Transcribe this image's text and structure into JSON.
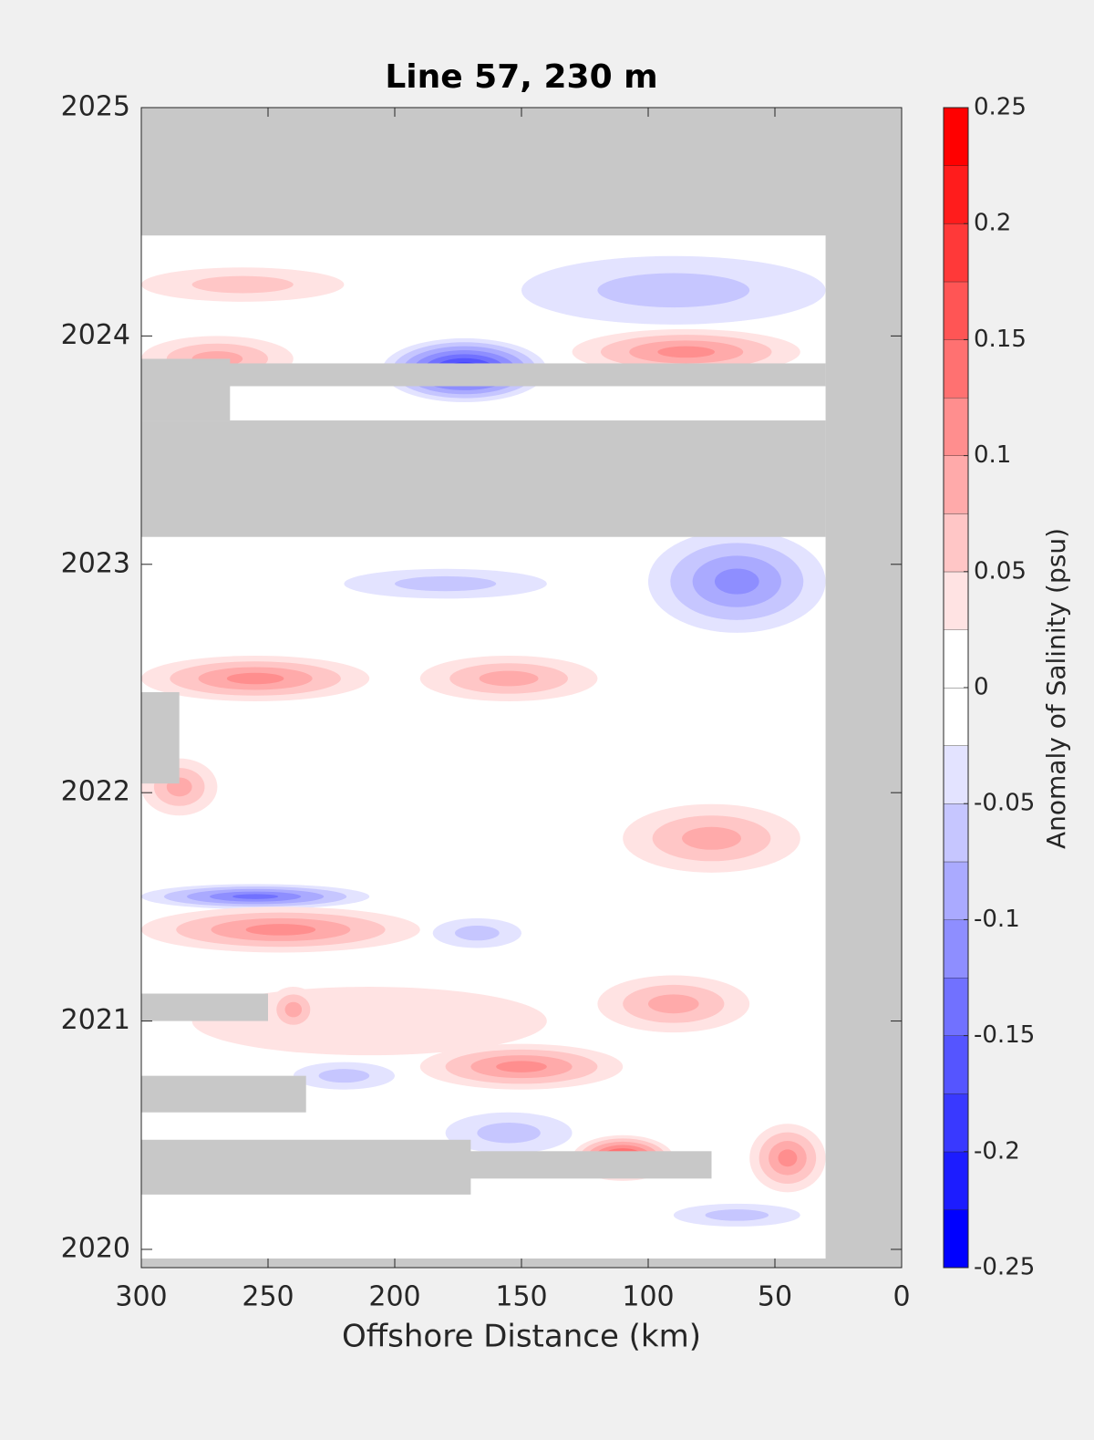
{
  "chart_data": {
    "type": "contour",
    "title": "Line 57, 230 m",
    "xlabel": "Offshore Distance (km)",
    "colorbar_label": "Anomaly of Salinity (psu)",
    "xlim": [
      300,
      0
    ],
    "xticks": [
      300,
      250,
      200,
      150,
      100,
      50,
      0
    ],
    "ylim": [
      2019.92,
      2025
    ],
    "yticks": [
      2020,
      2021,
      2022,
      2023,
      2024,
      2025
    ],
    "clim": [
      -0.25,
      0.25
    ],
    "cticks": [
      -0.25,
      -0.2,
      -0.15,
      -0.1,
      -0.05,
      0,
      0.05,
      0.1,
      0.15,
      0.2,
      0.25
    ],
    "level_step": 0.025,
    "colors": {
      "negative": "#0000ff",
      "zero": "#ffffff",
      "positive": "#ff0000",
      "missing": "#c8c8c8"
    },
    "anomalies": [
      {
        "x": [
          280,
          140
        ],
        "y": [
          2020.85,
          2021.15
        ],
        "value": 0.04
      },
      {
        "x": [
          300,
          220
        ],
        "y": [
          2024.15,
          2024.3
        ],
        "value": 0.06
      },
      {
        "x": [
          150,
          30
        ],
        "y": [
          2024.05,
          2024.35
        ],
        "value": -0.07
      },
      {
        "x": [
          300,
          240
        ],
        "y": [
          2023.8,
          2024.0
        ],
        "value": 0.08
      },
      {
        "x": [
          130,
          40
        ],
        "y": [
          2023.83,
          2024.03
        ],
        "value": 0.1
      },
      {
        "x": [
          205,
          140
        ],
        "y": [
          2023.71,
          2023.99
        ],
        "value": -0.2
      },
      {
        "x": [
          100,
          30
        ],
        "y": [
          2022.7,
          2023.15
        ],
        "value": -0.1
      },
      {
        "x": [
          220,
          140
        ],
        "y": [
          2022.85,
          2022.98
        ],
        "value": -0.06
      },
      {
        "x": [
          300,
          210
        ],
        "y": [
          2022.4,
          2022.6
        ],
        "value": 0.1
      },
      {
        "x": [
          190,
          120
        ],
        "y": [
          2022.4,
          2022.6
        ],
        "value": 0.09
      },
      {
        "x": [
          300,
          270
        ],
        "y": [
          2021.9,
          2022.15
        ],
        "value": 0.09
      },
      {
        "x": [
          110,
          40
        ],
        "y": [
          2021.65,
          2021.95
        ],
        "value": 0.08
      },
      {
        "x": [
          300,
          210
        ],
        "y": [
          2021.49,
          2021.6
        ],
        "value": -0.13
      },
      {
        "x": [
          300,
          190
        ],
        "y": [
          2021.3,
          2021.5
        ],
        "value": 0.12
      },
      {
        "x": [
          185,
          150
        ],
        "y": [
          2021.32,
          2021.45
        ],
        "value": -0.06
      },
      {
        "x": [
          250,
          230
        ],
        "y": [
          2020.95,
          2021.15
        ],
        "value": 0.08
      },
      {
        "x": [
          120,
          60
        ],
        "y": [
          2020.95,
          2021.2
        ],
        "value": 0.09
      },
      {
        "x": [
          190,
          110
        ],
        "y": [
          2020.7,
          2020.9
        ],
        "value": 0.1
      },
      {
        "x": [
          240,
          200
        ],
        "y": [
          2020.7,
          2020.82
        ],
        "value": -0.07
      },
      {
        "x": [
          180,
          130
        ],
        "y": [
          2020.42,
          2020.6
        ],
        "value": -0.06
      },
      {
        "x": [
          130,
          90
        ],
        "y": [
          2020.3,
          2020.5
        ],
        "value": 0.19
      },
      {
        "x": [
          60,
          30
        ],
        "y": [
          2020.25,
          2020.55
        ],
        "value": 0.1
      },
      {
        "x": [
          90,
          40
        ],
        "y": [
          2020.1,
          2020.2
        ],
        "value": -0.05
      }
    ],
    "missing": [
      {
        "x": [
          300,
          0
        ],
        "y": [
          2024.44,
          2025
        ]
      },
      {
        "x": [
          30,
          0
        ],
        "y": [
          2019.92,
          2025
        ]
      },
      {
        "x": [
          300,
          0
        ],
        "y": [
          2019.92,
          2019.96
        ]
      },
      {
        "x": [
          300,
          30
        ],
        "y": [
          2023.12,
          2023.63
        ]
      },
      {
        "x": [
          300,
          30
        ],
        "y": [
          2023.78,
          2023.88
        ]
      },
      {
        "x": [
          300,
          265
        ],
        "y": [
          2023.63,
          2023.9
        ]
      },
      {
        "x": [
          300,
          285
        ],
        "y": [
          2022.04,
          2022.44
        ]
      },
      {
        "x": [
          300,
          250
        ],
        "y": [
          2021.0,
          2021.12
        ]
      },
      {
        "x": [
          300,
          235
        ],
        "y": [
          2020.6,
          2020.76
        ]
      },
      {
        "x": [
          300,
          170
        ],
        "y": [
          2020.24,
          2020.48
        ]
      },
      {
        "x": [
          300,
          75
        ],
        "y": [
          2020.31,
          2020.43
        ]
      }
    ]
  }
}
